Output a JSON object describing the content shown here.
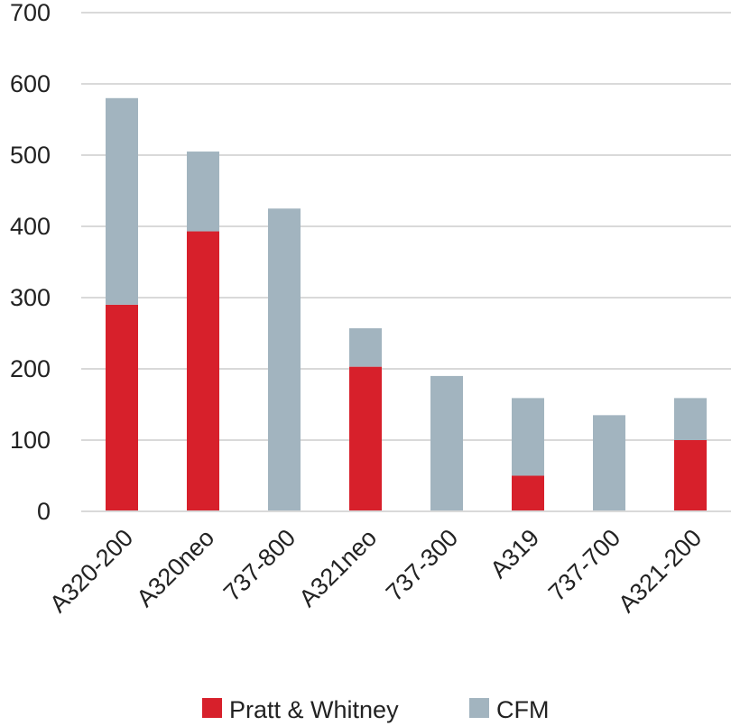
{
  "chart_data": {
    "type": "bar",
    "stacked": true,
    "title": "",
    "xlabel": "",
    "ylabel": "",
    "categories": [
      "A320-200",
      "A320neo",
      "737-800",
      "A321neo",
      "737-300",
      "A319",
      "737-700",
      "A321-200"
    ],
    "series": [
      {
        "name": "Pratt & Whitney",
        "color": "#d7202b",
        "values": [
          290,
          393,
          0,
          203,
          0,
          50,
          0,
          100
        ]
      },
      {
        "name": "CFM",
        "color": "#a2b4bf",
        "values": [
          290,
          112,
          425,
          54,
          190,
          109,
          135,
          59
        ]
      }
    ],
    "ylim": [
      0,
      700
    ],
    "yticks": [
      0,
      100,
      200,
      300,
      400,
      500,
      600,
      700
    ],
    "grid": true,
    "legend": "bottom"
  }
}
